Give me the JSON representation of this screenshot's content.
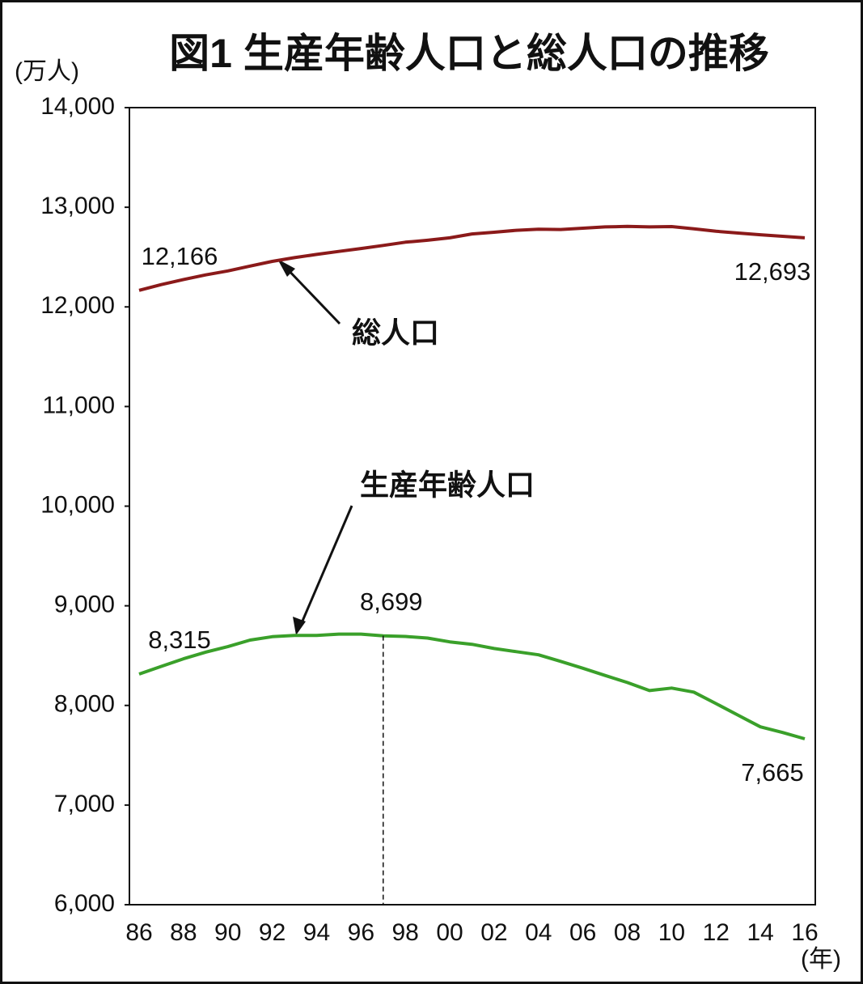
{
  "chart_data": {
    "type": "line",
    "title": "図1 生産年齢人口と総人口の推移",
    "y_label": "(万人)",
    "x_label": "(年)",
    "categories": [
      "86",
      null,
      "88",
      null,
      "90",
      null,
      "92",
      null,
      "94",
      null,
      "96",
      null,
      "98",
      null,
      "00",
      null,
      "02",
      null,
      "04",
      null,
      "06",
      null,
      "08",
      null,
      "10",
      null,
      "12",
      null,
      "14",
      null,
      "16"
    ],
    "series": [
      {
        "name": "総人口",
        "color": "#8b1a1a",
        "values": [
          12166,
          12224,
          12275,
          12321,
          12361,
          12410,
          12457,
          12494,
          12527,
          12557,
          12586,
          12617,
          12649,
          12669,
          12693,
          12732,
          12749,
          12769,
          12779,
          12777,
          12790,
          12803,
          12808,
          12803,
          12806,
          12783,
          12759,
          12741,
          12724,
          12709,
          12693
        ],
        "value_labels": [
          "12,166",
          null,
          null,
          null,
          null,
          null,
          null,
          null,
          null,
          null,
          null,
          null,
          null,
          null,
          null,
          null,
          null,
          null,
          null,
          null,
          null,
          null,
          null,
          null,
          null,
          null,
          null,
          null,
          null,
          null,
          "12,693"
        ]
      },
      {
        "name": "生産年齢人口",
        "color": "#3aa02a",
        "values": [
          8315,
          8392,
          8468,
          8535,
          8590,
          8656,
          8690,
          8702,
          8703,
          8716,
          8716,
          8699,
          8692,
          8676,
          8638,
          8614,
          8571,
          8540,
          8508,
          8442,
          8373,
          8301,
          8230,
          8149,
          8174,
          8134,
          8018,
          7901,
          7785,
          7728,
          7665
        ],
        "value_labels": [
          "8,315",
          null,
          null,
          null,
          null,
          null,
          null,
          null,
          null,
          null,
          null,
          "8,699",
          null,
          null,
          null,
          null,
          null,
          null,
          null,
          null,
          null,
          null,
          null,
          null,
          null,
          null,
          null,
          null,
          null,
          null,
          "7,665"
        ]
      }
    ],
    "ylim": [
      6000,
      14000
    ],
    "yticks": [
      {
        "value": 6000,
        "label": "6,000"
      },
      {
        "value": 7000,
        "label": "7,000"
      },
      {
        "value": 8000,
        "label": "8,000"
      },
      {
        "value": 9000,
        "label": "9,000"
      },
      {
        "value": 10000,
        "label": "10,000"
      },
      {
        "value": 11000,
        "label": "11,000"
      },
      {
        "value": 12000,
        "label": "12,000"
      },
      {
        "value": 13000,
        "label": "13,000"
      },
      {
        "value": 14000,
        "label": "14,000"
      }
    ],
    "grid": false
  }
}
